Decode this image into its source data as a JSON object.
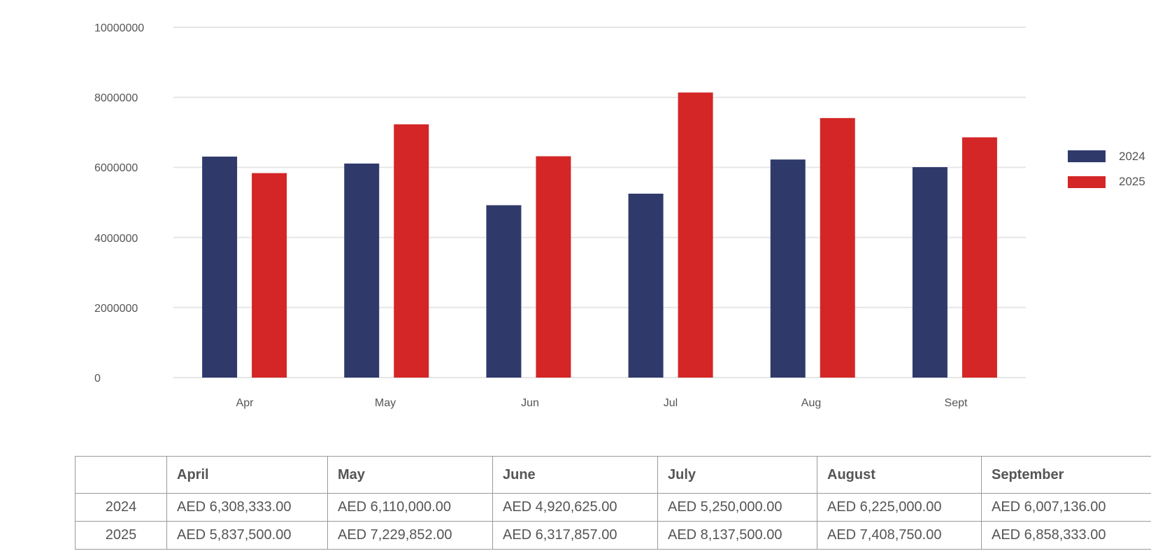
{
  "chart_data": {
    "type": "bar",
    "categories": [
      "Apr",
      "May",
      "Jun",
      "Jul",
      "Aug",
      "Sept"
    ],
    "series": [
      {
        "name": "2024",
        "color": "#2f3a6b",
        "values": [
          6308333,
          6110000,
          4920625,
          5250000,
          6225000,
          6007136
        ]
      },
      {
        "name": "2025",
        "color": "#d42626",
        "values": [
          5837500,
          7229852,
          6317857,
          8137500,
          7408750,
          6858333
        ]
      }
    ],
    "yticks": [
      "0",
      "2000000",
      "4000000",
      "6000000",
      "8000000",
      "10000000"
    ],
    "ylim": [
      0,
      10000000
    ],
    "grid": true,
    "legend_position": "right"
  },
  "table": {
    "header": [
      "",
      "April",
      "May",
      "June",
      "July",
      "August",
      "September"
    ],
    "rows": [
      {
        "label": "2024",
        "cells": [
          "AED 6,308,333.00",
          "AED 6,110,000.00",
          "AED 4,920,625.00",
          "AED 5,250,000.00",
          "AED 6,225,000.00",
          "AED 6,007,136.00"
        ]
      },
      {
        "label": "2025",
        "cells": [
          "AED 5,837,500.00",
          "AED 7,229,852.00",
          "AED 6,317,857.00",
          "AED 8,137,500.00",
          "AED 7,408,750.00",
          "AED 6,858,333.00"
        ]
      }
    ]
  }
}
